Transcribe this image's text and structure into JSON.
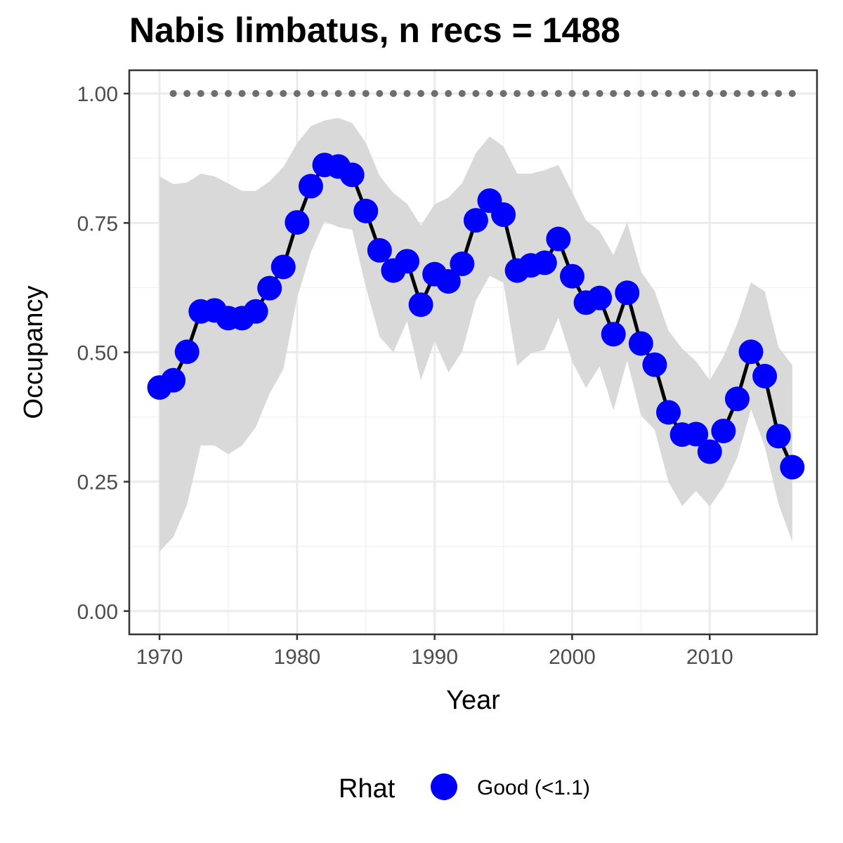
{
  "chart_data": {
    "type": "line",
    "title": "Nabis limbatus, n recs = 1488",
    "xlabel": "Year",
    "ylabel": "Occupancy",
    "xlim": [
      1967.8,
      2017.8
    ],
    "ylim": [
      -0.045,
      1.045
    ],
    "x_ticks": [
      1970,
      1980,
      1990,
      2000,
      2010
    ],
    "x_tick_labels": [
      "1970",
      "1980",
      "1990",
      "2000",
      "2010"
    ],
    "y_ticks": [
      0,
      0.25,
      0.5,
      0.75,
      1.0
    ],
    "y_tick_labels": [
      "0.00",
      "0.25",
      "0.50",
      "0.75",
      "1.00"
    ],
    "grid": true,
    "legend": {
      "title": "Rhat",
      "position": "bottom",
      "entries": [
        {
          "label": "Good (<1.1)",
          "color": "#0000ff"
        }
      ]
    },
    "colors": {
      "points": "#0000ff",
      "line": "#000000",
      "ribbon": "#d9d9d9",
      "reference": "#6e6e6e"
    },
    "x": [
      1970,
      1971,
      1972,
      1973,
      1974,
      1975,
      1976,
      1977,
      1978,
      1979,
      1980,
      1981,
      1982,
      1983,
      1984,
      1985,
      1986,
      1987,
      1988,
      1989,
      1990,
      1991,
      1992,
      1993,
      1994,
      1995,
      1996,
      1997,
      1998,
      1999,
      2000,
      2001,
      2002,
      2003,
      2004,
      2005,
      2006,
      2007,
      2008,
      2009,
      2010,
      2011,
      2012,
      2013,
      2014,
      2015,
      2016
    ],
    "series": [
      {
        "name": "Good (<1.1)",
        "values": [
          0.432,
          0.446,
          0.501,
          0.579,
          0.581,
          0.566,
          0.566,
          0.579,
          0.624,
          0.665,
          0.751,
          0.821,
          0.862,
          0.859,
          0.843,
          0.773,
          0.697,
          0.658,
          0.676,
          0.592,
          0.651,
          0.637,
          0.671,
          0.755,
          0.793,
          0.766,
          0.658,
          0.668,
          0.673,
          0.719,
          0.647,
          0.596,
          0.605,
          0.535,
          0.615,
          0.517,
          0.476,
          0.384,
          0.341,
          0.342,
          0.308,
          0.348,
          0.41,
          0.501,
          0.454,
          0.338,
          0.278
        ]
      }
    ],
    "ci_upper": [
      0.84,
      0.825,
      0.828,
      0.845,
      0.84,
      0.826,
      0.812,
      0.812,
      0.83,
      0.858,
      0.904,
      0.937,
      0.948,
      0.953,
      0.943,
      0.905,
      0.841,
      0.808,
      0.787,
      0.745,
      0.786,
      0.799,
      0.827,
      0.885,
      0.917,
      0.898,
      0.845,
      0.845,
      0.852,
      0.862,
      0.809,
      0.755,
      0.734,
      0.688,
      0.751,
      0.656,
      0.618,
      0.542,
      0.507,
      0.483,
      0.446,
      0.492,
      0.555,
      0.635,
      0.618,
      0.51,
      0.475
    ],
    "ci_lower": [
      0.115,
      0.143,
      0.205,
      0.32,
      0.32,
      0.303,
      0.32,
      0.355,
      0.42,
      0.467,
      0.605,
      0.693,
      0.753,
      0.742,
      0.737,
      0.626,
      0.53,
      0.5,
      0.56,
      0.446,
      0.522,
      0.461,
      0.501,
      0.6,
      0.648,
      0.634,
      0.474,
      0.498,
      0.505,
      0.567,
      0.482,
      0.431,
      0.473,
      0.388,
      0.484,
      0.378,
      0.35,
      0.25,
      0.203,
      0.232,
      0.202,
      0.24,
      0.296,
      0.39,
      0.318,
      0.207,
      0.134
    ],
    "reference": {
      "y": 1.0,
      "x_start": 1971,
      "x_end": 2016,
      "style": "dotted"
    }
  }
}
